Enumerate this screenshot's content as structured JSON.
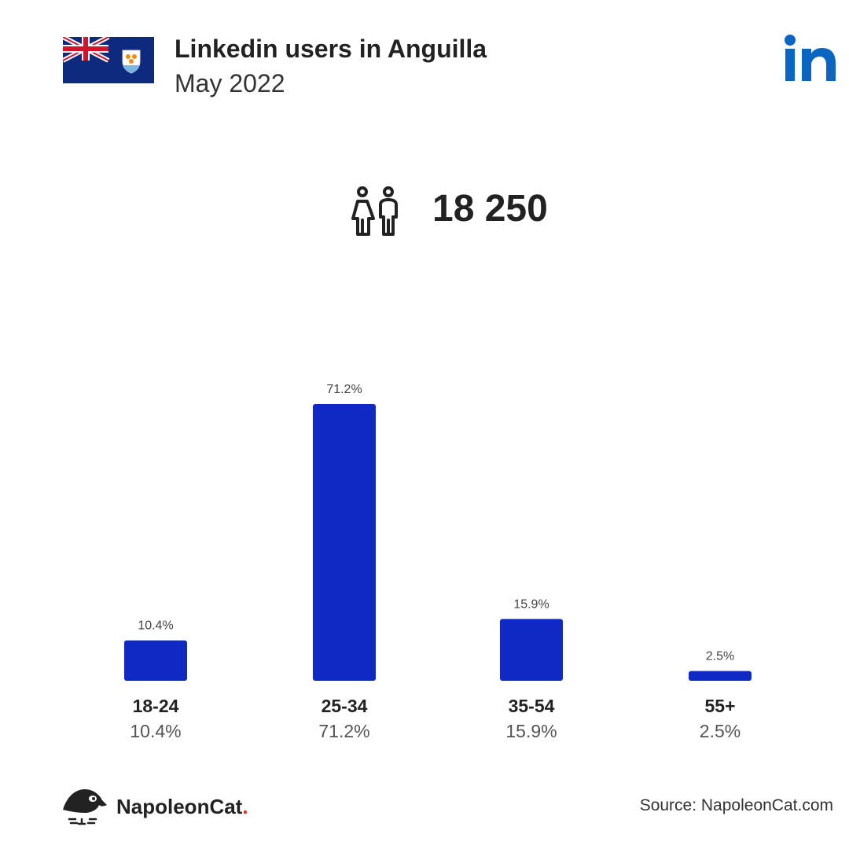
{
  "header": {
    "title": "Linkedin users in Anguilla",
    "subtitle": "May 2022",
    "flag_icon": "anguilla-flag-icon",
    "platform_icon": "linkedin-logo-icon"
  },
  "summary": {
    "icon": "users-icon",
    "total": "18 250"
  },
  "chart_data": {
    "type": "bar",
    "categories": [
      "18-24",
      "25-34",
      "35-54",
      "55+"
    ],
    "values": [
      10.4,
      71.2,
      15.9,
      2.5
    ],
    "value_labels": [
      "10.4%",
      "71.2%",
      "15.9%",
      "2.5%"
    ],
    "title": "",
    "xlabel": "",
    "ylabel": "",
    "ylim": [
      0,
      71.2
    ],
    "grid": false,
    "legend": "none",
    "bar_color": "#1029c4"
  },
  "footer": {
    "brand_name": "NapoleonCat",
    "brand_dot": ".",
    "brand_icon": "napoleoncat-logo-icon",
    "source": "Source: NapoleonCat.com"
  },
  "colors": {
    "linkedin_blue": "#0a66c2",
    "bar": "#1029c4",
    "brand_dot": "#e02424"
  }
}
